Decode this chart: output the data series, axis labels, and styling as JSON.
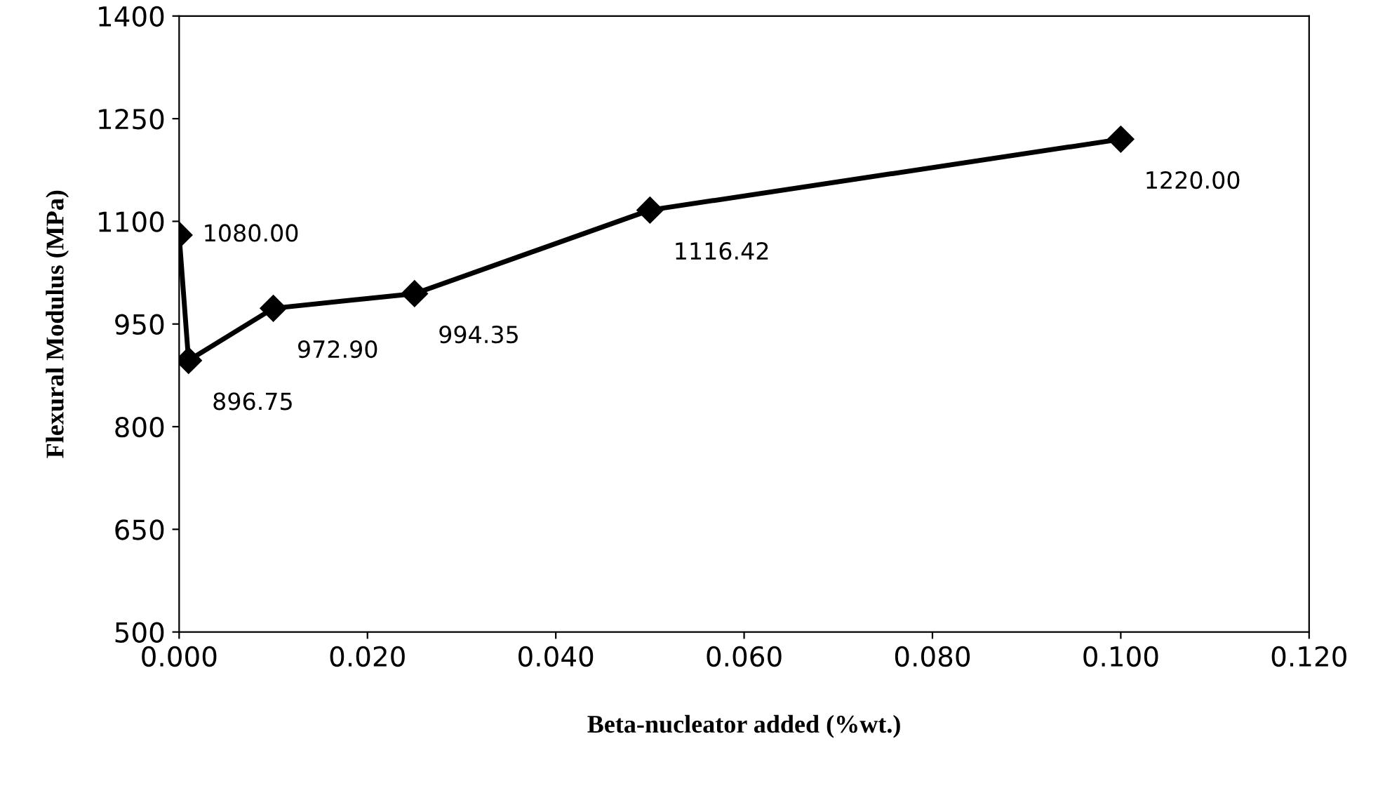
{
  "chart_data": {
    "type": "line",
    "xlabel": "Beta-nucleator added (%wt.)",
    "ylabel": "Flexural Modulus (MPa)",
    "x": [
      0.0,
      0.001,
      0.01,
      0.025,
      0.05,
      0.1
    ],
    "series": [
      {
        "color": "#000000",
        "values": [
          1080.0,
          896.75,
          972.9,
          994.35,
          1116.42,
          1220.0
        ],
        "value_labels": [
          "1080.00",
          "896.75",
          "972.90",
          "994.35",
          "1116.42",
          "1220.00"
        ]
      }
    ],
    "xlim": [
      0.0,
      0.12
    ],
    "xticks": [
      {
        "value": 0.0,
        "label": "0.000"
      },
      {
        "value": 0.02,
        "label": "0.020"
      },
      {
        "value": 0.04,
        "label": "0.040"
      },
      {
        "value": 0.06,
        "label": "0.060"
      },
      {
        "value": 0.08,
        "label": "0.080"
      },
      {
        "value": 0.1,
        "label": "0.100"
      },
      {
        "value": 0.12,
        "label": "0.120"
      }
    ],
    "ylim": [
      500,
      1400
    ],
    "yticks": [
      500,
      650,
      800,
      950,
      1100,
      1250,
      1400
    ],
    "grid": false,
    "legend": false,
    "marker": "diamond",
    "line_style": "solid"
  }
}
